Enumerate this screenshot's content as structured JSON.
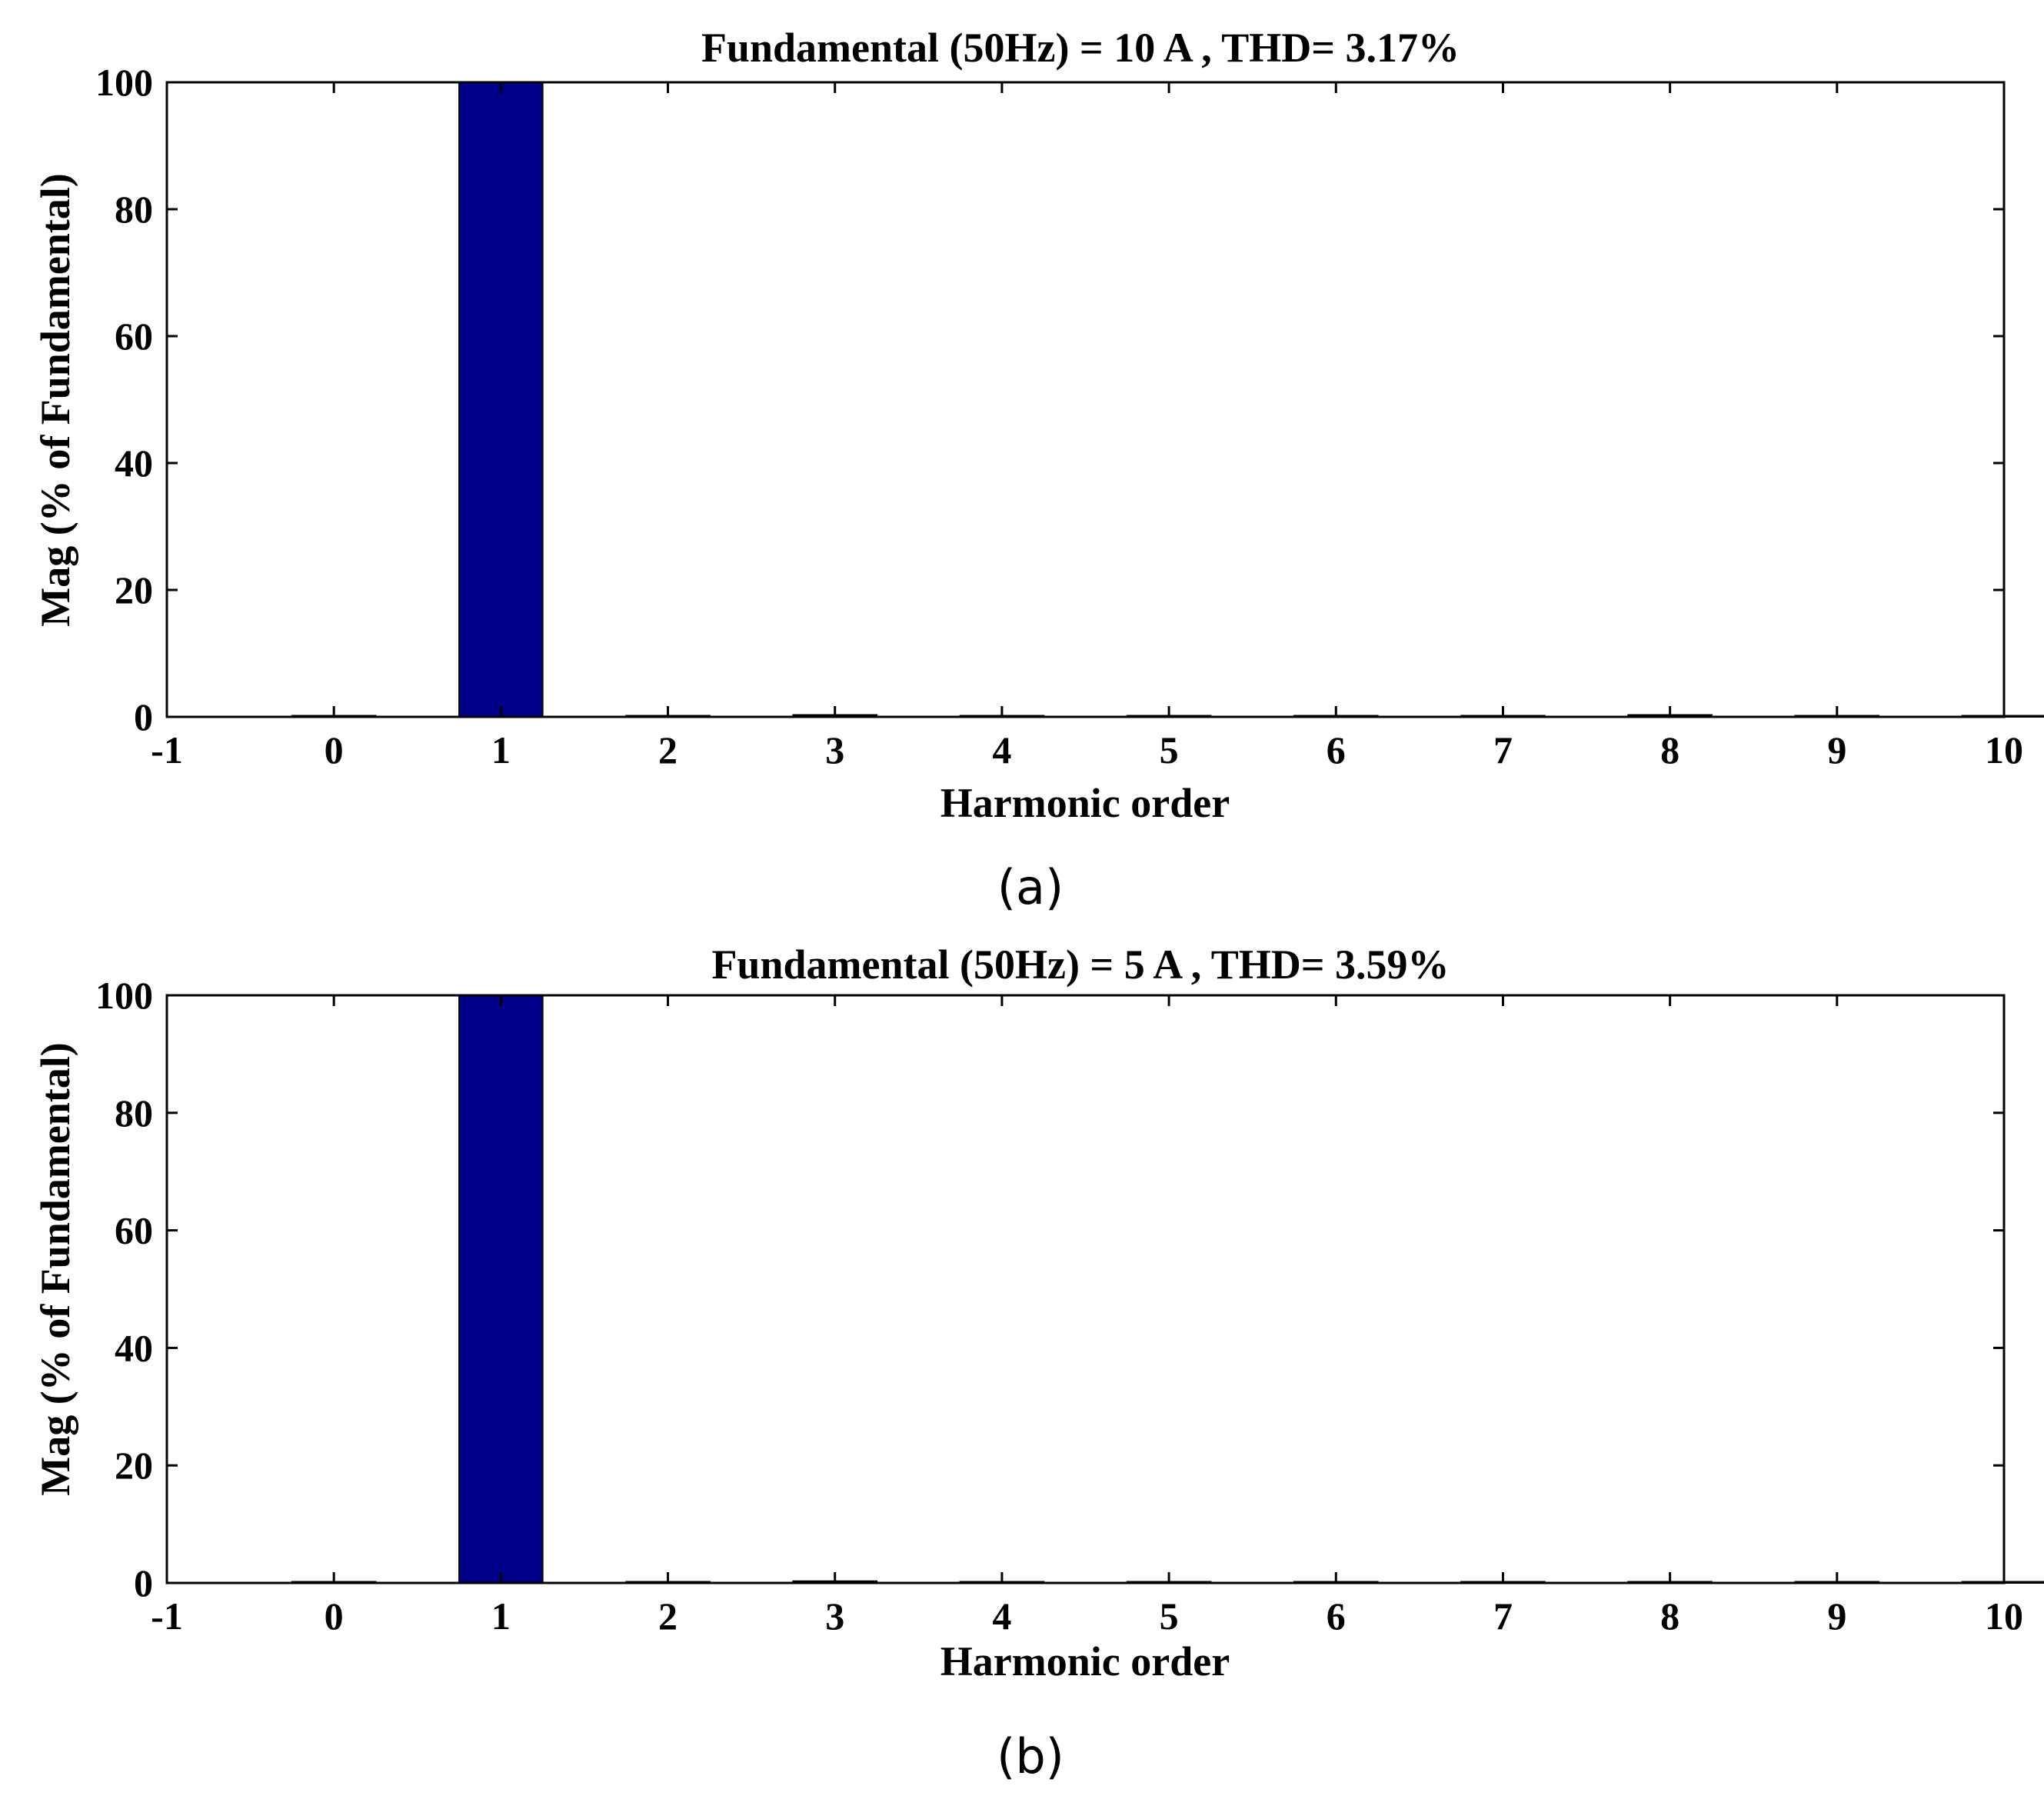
{
  "colors": {
    "bar": "#00008B",
    "axis": "#000000",
    "background": "#FFFFFF"
  },
  "chart_data": [
    {
      "type": "bar",
      "title": "Fundamental (50Hz) = 10 A , THD= 3.17%",
      "xlabel": "Harmonic order",
      "ylabel": "Mag (% of Fundamental)",
      "caption": "(a)",
      "xlim": [
        -1,
        10
      ],
      "ylim": [
        0,
        100
      ],
      "xticks": [
        "-1",
        "0",
        "1",
        "2",
        "3",
        "4",
        "5",
        "6",
        "7",
        "8",
        "9",
        "10"
      ],
      "yticks": [
        "0",
        "20",
        "40",
        "60",
        "80",
        "100"
      ],
      "x": [
        0,
        1,
        2,
        3,
        4,
        5,
        6,
        7,
        8,
        9,
        10
      ],
      "values": [
        0.1,
        100,
        0.1,
        0.3,
        0.1,
        0.1,
        0.1,
        0.1,
        0.3,
        0.1,
        0.1
      ],
      "grid": false,
      "legend": "none"
    },
    {
      "type": "bar",
      "title": "Fundamental (50Hz) = 5 A , THD= 3.59%",
      "xlabel": "Harmonic order",
      "ylabel": "Mag (% of Fundamental)",
      "caption": "(b)",
      "xlim": [
        -1,
        10
      ],
      "ylim": [
        0,
        100
      ],
      "xticks": [
        "-1",
        "0",
        "1",
        "2",
        "3",
        "4",
        "5",
        "6",
        "7",
        "8",
        "9",
        "10"
      ],
      "yticks": [
        "0",
        "20",
        "40",
        "60",
        "80",
        "100"
      ],
      "x": [
        0,
        1,
        2,
        3,
        4,
        5,
        6,
        7,
        8,
        9,
        10
      ],
      "values": [
        0.1,
        100,
        0.1,
        0.3,
        0.1,
        0.1,
        0.1,
        0.1,
        0.1,
        0.1,
        0.1
      ],
      "grid": false,
      "legend": "none"
    }
  ]
}
